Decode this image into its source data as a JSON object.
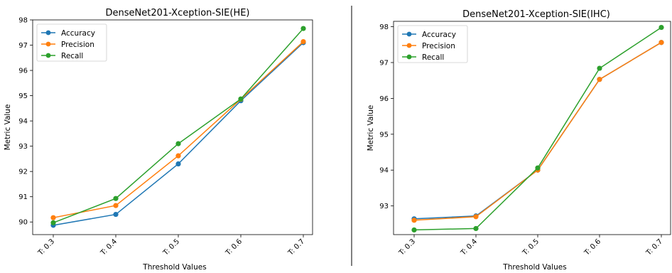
{
  "colors": {
    "accuracy": "#1f77b4",
    "precision": "#ff7f0e",
    "recall": "#2ca02c",
    "divider": "#000000"
  },
  "chart_data": [
    {
      "type": "line",
      "title": "DenseNet201-Xception-SIE(HE)",
      "xlabel": "Threshold Values",
      "ylabel": "Metric Value",
      "categories": [
        "T: 0.3",
        "T: 0.4",
        "T: 0.5",
        "T: 0.6",
        "T: 0.7"
      ],
      "ylim": [
        89.5,
        98.0
      ],
      "yticks": [
        90,
        91,
        92,
        93,
        94,
        95,
        96,
        97,
        98
      ],
      "legend": "top-left",
      "grid": false,
      "series": [
        {
          "name": "Accuracy",
          "color": "#1f77b4",
          "values": [
            89.87,
            90.3,
            92.3,
            94.8,
            97.1
          ]
        },
        {
          "name": "Precision",
          "color": "#ff7f0e",
          "values": [
            90.17,
            90.65,
            92.62,
            94.86,
            97.14
          ]
        },
        {
          "name": "Recall",
          "color": "#2ca02c",
          "values": [
            89.97,
            90.93,
            93.1,
            94.87,
            97.66
          ]
        }
      ]
    },
    {
      "type": "line",
      "title": "DenseNet201-Xception-SIE(IHC)",
      "xlabel": "Threshold Values",
      "ylabel": "Metric Value",
      "categories": [
        "T: 0.3",
        "T: 0.4",
        "T: 0.5",
        "T: 0.6",
        "T: 0.7"
      ],
      "ylim": [
        92.2,
        98.15
      ],
      "yticks": [
        93,
        94,
        95,
        96,
        97,
        98
      ],
      "legend": "top-left",
      "grid": false,
      "series": [
        {
          "name": "Accuracy",
          "color": "#1f77b4",
          "values": [
            92.64,
            92.72,
            94.0,
            96.53,
            97.56
          ]
        },
        {
          "name": "Precision",
          "color": "#ff7f0e",
          "values": [
            92.6,
            92.7,
            94.0,
            96.53,
            97.56
          ]
        },
        {
          "name": "Recall",
          "color": "#2ca02c",
          "values": [
            92.33,
            92.37,
            94.06,
            96.84,
            97.98
          ]
        }
      ]
    }
  ]
}
